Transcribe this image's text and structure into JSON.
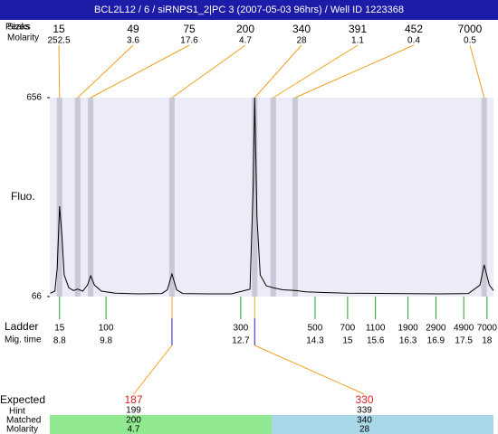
{
  "chart_data": {
    "type": "line",
    "title": "BCL2L12 / 6 / siRNPS1_2|PC 3 (2007-05-03 96hrs) / Well ID 1223368",
    "row_labels": {
      "sizes": "Sizes",
      "peaks": "Peaks",
      "molarity": "Molarity",
      "fluo": "Fluo.",
      "ladder": "Ladder",
      "mig_time": "Mig. time",
      "expected": "Expected",
      "hint": "Hint",
      "matched": "Matched",
      "matched_molarity": "Molarity"
    },
    "x": [
      8.6,
      8.7,
      8.75,
      8.8,
      8.85,
      8.9,
      9.0,
      9.1,
      9.19,
      9.3,
      9.4,
      9.47,
      9.55,
      9.7,
      10.0,
      10.5,
      11.0,
      11.12,
      11.22,
      11.32,
      11.45,
      12.0,
      12.5,
      12.9,
      12.97,
      13.0,
      13.05,
      13.12,
      13.25,
      13.4,
      13.6,
      13.87,
      14.1,
      14.5,
      15.0,
      16.0,
      17.0,
      17.6,
      17.85,
      17.94,
      18.05,
      18.14
    ],
    "values": [
      76,
      82,
      150,
      334,
      250,
      130,
      92,
      84,
      88,
      82,
      100,
      128,
      100,
      82,
      76,
      74,
      75,
      86,
      133,
      86,
      75,
      74,
      74,
      88,
      400,
      656,
      300,
      130,
      98,
      92,
      86,
      84,
      80,
      78,
      76,
      75,
      74,
      75,
      100,
      160,
      100,
      84
    ],
    "xlim": [
      8.59,
      18.14
    ],
    "ylim": [
      66,
      656
    ],
    "yticks": [
      656,
      66
    ],
    "color": "#000000",
    "peaks": [
      {
        "size": 15,
        "molarity": 252.5,
        "time": 8.8
      },
      {
        "size": 49,
        "molarity": 3.6,
        "time": 9.19
      },
      {
        "size": 75,
        "molarity": 17.6,
        "time": 9.47
      },
      {
        "size": 200,
        "molarity": 4.7,
        "time": 11.22
      },
      {
        "size": 340,
        "molarity": 28,
        "time": 13.0
      },
      {
        "size": 391,
        "molarity": 1.1,
        "time": 13.4
      },
      {
        "size": 452,
        "molarity": 0.4,
        "time": 13.87
      },
      {
        "size": 7000,
        "molarity": 0.5,
        "time": 17.94
      }
    ],
    "ladder": {
      "sizes": [
        15,
        100,
        300,
        500,
        700,
        1100,
        1900,
        2900,
        4900,
        7000
      ],
      "times": [
        8.8,
        9.8,
        12.7,
        14.3,
        15,
        15.6,
        16.3,
        16.9,
        17.5,
        18
      ]
    },
    "expected": [
      {
        "expected": 187,
        "hint": 199,
        "matched": 200,
        "molarity": 4.7,
        "time": 11.22
      },
      {
        "expected": 330,
        "hint": 339,
        "matched": 340,
        "molarity": 28,
        "time": 13.0
      }
    ]
  }
}
